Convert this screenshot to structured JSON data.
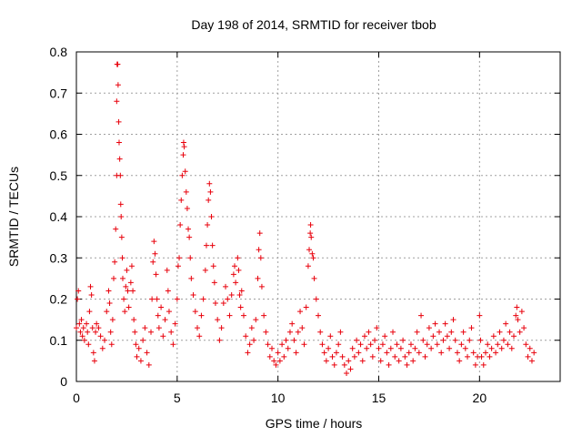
{
  "chart_data": {
    "type": "scatter",
    "title": "Day 198 of 2014, SRMTID for receiver tbob",
    "xlabel": "GPS time / hours",
    "ylabel": "SRMTID / TECUs",
    "xlim": [
      0,
      24
    ],
    "ylim": [
      0,
      0.8
    ],
    "xticks": [
      0,
      5,
      10,
      15,
      20
    ],
    "xtick_labels": [
      "0",
      "5",
      "10",
      "15",
      "20"
    ],
    "yticks": [
      0,
      0.1,
      0.2,
      0.3,
      0.4,
      0.5,
      0.6,
      0.7,
      0.8
    ],
    "ytick_labels": [
      "0",
      "0.1",
      "0.2",
      "0.3",
      "0.4",
      "0.5",
      "0.6",
      "0.7",
      "0.8"
    ],
    "grid": true,
    "marker": "plus",
    "color": "#e8000b",
    "series": [
      {
        "name": "SRMTID",
        "points": [
          [
            0.0,
            0.13
          ],
          [
            0.05,
            0.2
          ],
          [
            0.1,
            0.22
          ],
          [
            0.15,
            0.14
          ],
          [
            0.2,
            0.12
          ],
          [
            0.25,
            0.15
          ],
          [
            0.3,
            0.11
          ],
          [
            0.35,
            0.13
          ],
          [
            0.4,
            0.1
          ],
          [
            0.5,
            0.14
          ],
          [
            0.55,
            0.12
          ],
          [
            0.6,
            0.09
          ],
          [
            0.65,
            0.17
          ],
          [
            0.7,
            0.23
          ],
          [
            0.75,
            0.21
          ],
          [
            0.8,
            0.13
          ],
          [
            0.85,
            0.07
          ],
          [
            0.9,
            0.05
          ],
          [
            0.95,
            0.12
          ],
          [
            1.0,
            0.14
          ],
          [
            1.1,
            0.13
          ],
          [
            1.2,
            0.11
          ],
          [
            1.3,
            0.08
          ],
          [
            1.4,
            0.1
          ],
          [
            1.5,
            0.17
          ],
          [
            1.6,
            0.22
          ],
          [
            1.65,
            0.19
          ],
          [
            1.7,
            0.12
          ],
          [
            1.75,
            0.09
          ],
          [
            1.8,
            0.15
          ],
          [
            1.85,
            0.25
          ],
          [
            1.9,
            0.29
          ],
          [
            1.95,
            0.37
          ],
          [
            2.0,
            0.5
          ],
          [
            2.0,
            0.68
          ],
          [
            2.02,
            0.77
          ],
          [
            2.05,
            0.77
          ],
          [
            2.07,
            0.72
          ],
          [
            2.1,
            0.63
          ],
          [
            2.12,
            0.58
          ],
          [
            2.15,
            0.54
          ],
          [
            2.18,
            0.5
          ],
          [
            2.2,
            0.43
          ],
          [
            2.22,
            0.4
          ],
          [
            2.25,
            0.35
          ],
          [
            2.28,
            0.3
          ],
          [
            2.3,
            0.25
          ],
          [
            2.35,
            0.2
          ],
          [
            2.4,
            0.17
          ],
          [
            2.45,
            0.23
          ],
          [
            2.5,
            0.27
          ],
          [
            2.55,
            0.22
          ],
          [
            2.6,
            0.18
          ],
          [
            2.7,
            0.24
          ],
          [
            2.75,
            0.28
          ],
          [
            2.8,
            0.22
          ],
          [
            2.85,
            0.15
          ],
          [
            2.9,
            0.12
          ],
          [
            2.95,
            0.09
          ],
          [
            3.0,
            0.06
          ],
          [
            3.1,
            0.08
          ],
          [
            3.2,
            0.05
          ],
          [
            3.3,
            0.1
          ],
          [
            3.4,
            0.13
          ],
          [
            3.5,
            0.07
          ],
          [
            3.6,
            0.04
          ],
          [
            3.7,
            0.12
          ],
          [
            3.75,
            0.2
          ],
          [
            3.8,
            0.29
          ],
          [
            3.85,
            0.34
          ],
          [
            3.9,
            0.31
          ],
          [
            3.95,
            0.26
          ],
          [
            4.0,
            0.2
          ],
          [
            4.05,
            0.16
          ],
          [
            4.1,
            0.13
          ],
          [
            4.2,
            0.18
          ],
          [
            4.3,
            0.11
          ],
          [
            4.4,
            0.15
          ],
          [
            4.5,
            0.27
          ],
          [
            4.55,
            0.22
          ],
          [
            4.6,
            0.17
          ],
          [
            4.7,
            0.12
          ],
          [
            4.8,
            0.09
          ],
          [
            4.9,
            0.14
          ],
          [
            5.0,
            0.2
          ],
          [
            5.05,
            0.28
          ],
          [
            5.1,
            0.3
          ],
          [
            5.15,
            0.38
          ],
          [
            5.2,
            0.44
          ],
          [
            5.25,
            0.5
          ],
          [
            5.3,
            0.55
          ],
          [
            5.32,
            0.58
          ],
          [
            5.35,
            0.57
          ],
          [
            5.4,
            0.51
          ],
          [
            5.45,
            0.46
          ],
          [
            5.5,
            0.42
          ],
          [
            5.55,
            0.37
          ],
          [
            5.6,
            0.35
          ],
          [
            5.65,
            0.3
          ],
          [
            5.7,
            0.25
          ],
          [
            5.8,
            0.21
          ],
          [
            5.9,
            0.17
          ],
          [
            6.0,
            0.13
          ],
          [
            6.1,
            0.11
          ],
          [
            6.2,
            0.16
          ],
          [
            6.3,
            0.2
          ],
          [
            6.4,
            0.27
          ],
          [
            6.45,
            0.33
          ],
          [
            6.5,
            0.38
          ],
          [
            6.55,
            0.44
          ],
          [
            6.6,
            0.48
          ],
          [
            6.65,
            0.46
          ],
          [
            6.7,
            0.4
          ],
          [
            6.75,
            0.33
          ],
          [
            6.8,
            0.28
          ],
          [
            6.85,
            0.24
          ],
          [
            6.9,
            0.19
          ],
          [
            7.0,
            0.15
          ],
          [
            7.1,
            0.1
          ],
          [
            7.2,
            0.13
          ],
          [
            7.3,
            0.19
          ],
          [
            7.4,
            0.23
          ],
          [
            7.5,
            0.2
          ],
          [
            7.6,
            0.16
          ],
          [
            7.7,
            0.21
          ],
          [
            7.8,
            0.26
          ],
          [
            7.85,
            0.28
          ],
          [
            7.9,
            0.24
          ],
          [
            8.0,
            0.3
          ],
          [
            8.05,
            0.27
          ],
          [
            8.1,
            0.21
          ],
          [
            8.15,
            0.18
          ],
          [
            8.2,
            0.22
          ],
          [
            8.3,
            0.16
          ],
          [
            8.4,
            0.11
          ],
          [
            8.5,
            0.07
          ],
          [
            8.6,
            0.09
          ],
          [
            8.7,
            0.13
          ],
          [
            8.8,
            0.1
          ],
          [
            8.9,
            0.15
          ],
          [
            9.0,
            0.25
          ],
          [
            9.05,
            0.32
          ],
          [
            9.1,
            0.36
          ],
          [
            9.15,
            0.3
          ],
          [
            9.2,
            0.23
          ],
          [
            9.3,
            0.16
          ],
          [
            9.4,
            0.12
          ],
          [
            9.5,
            0.09
          ],
          [
            9.6,
            0.06
          ],
          [
            9.7,
            0.08
          ],
          [
            9.8,
            0.05
          ],
          [
            9.9,
            0.04
          ],
          [
            10.0,
            0.07
          ],
          [
            10.1,
            0.05
          ],
          [
            10.2,
            0.09
          ],
          [
            10.3,
            0.06
          ],
          [
            10.4,
            0.1
          ],
          [
            10.5,
            0.08
          ],
          [
            10.6,
            0.12
          ],
          [
            10.7,
            0.14
          ],
          [
            10.8,
            0.1
          ],
          [
            10.9,
            0.07
          ],
          [
            11.0,
            0.12
          ],
          [
            11.1,
            0.17
          ],
          [
            11.2,
            0.13
          ],
          [
            11.3,
            0.09
          ],
          [
            11.4,
            0.18
          ],
          [
            11.5,
            0.28
          ],
          [
            11.55,
            0.32
          ],
          [
            11.6,
            0.36
          ],
          [
            11.62,
            0.38
          ],
          [
            11.65,
            0.35
          ],
          [
            11.7,
            0.31
          ],
          [
            11.75,
            0.3
          ],
          [
            11.8,
            0.25
          ],
          [
            11.9,
            0.2
          ],
          [
            12.0,
            0.16
          ],
          [
            12.1,
            0.12
          ],
          [
            12.2,
            0.09
          ],
          [
            12.3,
            0.07
          ],
          [
            12.4,
            0.05
          ],
          [
            12.5,
            0.08
          ],
          [
            12.6,
            0.11
          ],
          [
            12.7,
            0.06
          ],
          [
            12.8,
            0.04
          ],
          [
            12.9,
            0.07
          ],
          [
            13.0,
            0.09
          ],
          [
            13.1,
            0.12
          ],
          [
            13.2,
            0.06
          ],
          [
            13.3,
            0.04
          ],
          [
            13.4,
            0.02
          ],
          [
            13.5,
            0.05
          ],
          [
            13.6,
            0.03
          ],
          [
            13.7,
            0.08
          ],
          [
            13.8,
            0.06
          ],
          [
            13.9,
            0.1
          ],
          [
            14.0,
            0.07
          ],
          [
            14.1,
            0.09
          ],
          [
            14.2,
            0.05
          ],
          [
            14.3,
            0.11
          ],
          [
            14.4,
            0.08
          ],
          [
            14.5,
            0.12
          ],
          [
            14.6,
            0.09
          ],
          [
            14.7,
            0.06
          ],
          [
            14.8,
            0.1
          ],
          [
            14.9,
            0.13
          ],
          [
            15.0,
            0.08
          ],
          [
            15.1,
            0.05
          ],
          [
            15.2,
            0.09
          ],
          [
            15.3,
            0.11
          ],
          [
            15.4,
            0.07
          ],
          [
            15.5,
            0.04
          ],
          [
            15.6,
            0.08
          ],
          [
            15.7,
            0.12
          ],
          [
            15.8,
            0.06
          ],
          [
            15.9,
            0.09
          ],
          [
            16.0,
            0.05
          ],
          [
            16.1,
            0.08
          ],
          [
            16.2,
            0.1
          ],
          [
            16.3,
            0.06
          ],
          [
            16.4,
            0.04
          ],
          [
            16.5,
            0.07
          ],
          [
            16.6,
            0.09
          ],
          [
            16.7,
            0.05
          ],
          [
            16.8,
            0.08
          ],
          [
            16.9,
            0.12
          ],
          [
            17.0,
            0.07
          ],
          [
            17.1,
            0.16
          ],
          [
            17.2,
            0.1
          ],
          [
            17.3,
            0.06
          ],
          [
            17.4,
            0.09
          ],
          [
            17.5,
            0.13
          ],
          [
            17.6,
            0.08
          ],
          [
            17.7,
            0.11
          ],
          [
            17.8,
            0.14
          ],
          [
            17.9,
            0.09
          ],
          [
            18.0,
            0.12
          ],
          [
            18.1,
            0.07
          ],
          [
            18.2,
            0.1
          ],
          [
            18.3,
            0.14
          ],
          [
            18.4,
            0.11
          ],
          [
            18.5,
            0.08
          ],
          [
            18.6,
            0.12
          ],
          [
            18.7,
            0.15
          ],
          [
            18.8,
            0.1
          ],
          [
            18.9,
            0.07
          ],
          [
            19.0,
            0.05
          ],
          [
            19.1,
            0.09
          ],
          [
            19.2,
            0.12
          ],
          [
            19.3,
            0.08
          ],
          [
            19.4,
            0.06
          ],
          [
            19.5,
            0.1
          ],
          [
            19.6,
            0.13
          ],
          [
            19.7,
            0.07
          ],
          [
            19.8,
            0.04
          ],
          [
            19.9,
            0.06
          ],
          [
            20.0,
            0.16
          ],
          [
            20.05,
            0.1
          ],
          [
            20.1,
            0.06
          ],
          [
            20.2,
            0.04
          ],
          [
            20.3,
            0.07
          ],
          [
            20.4,
            0.09
          ],
          [
            20.5,
            0.06
          ],
          [
            20.6,
            0.08
          ],
          [
            20.7,
            0.11
          ],
          [
            20.8,
            0.07
          ],
          [
            20.9,
            0.09
          ],
          [
            21.0,
            0.12
          ],
          [
            21.1,
            0.08
          ],
          [
            21.2,
            0.1
          ],
          [
            21.3,
            0.14
          ],
          [
            21.4,
            0.09
          ],
          [
            21.5,
            0.12
          ],
          [
            21.6,
            0.08
          ],
          [
            21.7,
            0.11
          ],
          [
            21.8,
            0.16
          ],
          [
            21.85,
            0.18
          ],
          [
            21.9,
            0.15
          ],
          [
            22.0,
            0.12
          ],
          [
            22.1,
            0.17
          ],
          [
            22.2,
            0.13
          ],
          [
            22.3,
            0.09
          ],
          [
            22.4,
            0.06
          ],
          [
            22.5,
            0.08
          ],
          [
            22.6,
            0.05
          ],
          [
            22.7,
            0.07
          ]
        ]
      }
    ]
  }
}
